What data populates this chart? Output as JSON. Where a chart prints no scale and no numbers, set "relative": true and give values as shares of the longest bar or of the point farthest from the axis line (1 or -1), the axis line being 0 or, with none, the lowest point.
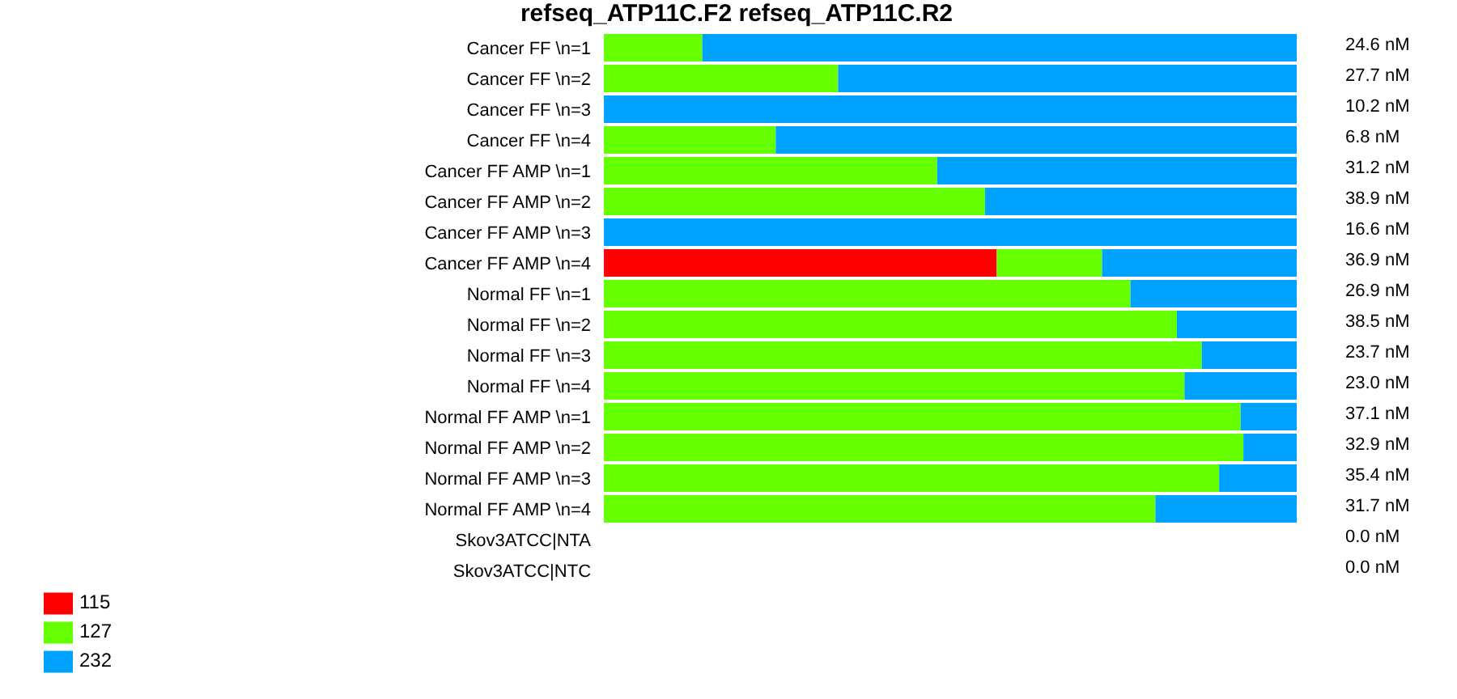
{
  "chart_data": {
    "type": "bar",
    "orientation": "horizontal",
    "stacked": true,
    "relative": true,
    "title": "refseq_ATP11C.F2  refseq_ATP11C.R2",
    "categories": [
      "Cancer FF \\n=1",
      "Cancer FF \\n=2",
      "Cancer FF \\n=3",
      "Cancer FF \\n=4",
      "Cancer FF AMP \\n=1",
      "Cancer FF AMP \\n=2",
      "Cancer FF AMP \\n=3",
      "Cancer FF AMP \\n=4",
      "Normal FF \\n=1",
      "Normal FF \\n=2",
      "Normal FF \\n=3",
      "Normal FF \\n=4",
      "Normal FF AMP \\n=1",
      "Normal FF AMP \\n=2",
      "Normal FF AMP \\n=3",
      "Normal FF AMP \\n=4",
      "Skov3ATCC|NTA",
      "Skov3ATCC|NTC"
    ],
    "series": [
      {
        "name": "115",
        "color": "#ff0000",
        "values": [
          0,
          0,
          0,
          0,
          0,
          0,
          0,
          0.567,
          0,
          0,
          0,
          0,
          0,
          0,
          0,
          0,
          0,
          0
        ]
      },
      {
        "name": "127",
        "color": "#66ff00",
        "values": [
          0.142,
          0.338,
          0,
          0.248,
          0.481,
          0.55,
          0,
          0.152,
          0.76,
          0.827,
          0.863,
          0.838,
          0.919,
          0.923,
          0.888,
          0.796,
          0,
          0
        ]
      },
      {
        "name": "232",
        "color": "#00a2ff",
        "values": [
          0.858,
          0.662,
          1,
          0.752,
          0.519,
          0.45,
          1,
          0.281,
          0.24,
          0.173,
          0.137,
          0.162,
          0.081,
          0.077,
          0.112,
          0.204,
          0,
          0
        ]
      }
    ],
    "annotations": [
      "24.6 nM",
      "27.7 nM",
      "10.2 nM",
      "6.8 nM",
      "31.2 nM",
      "38.9 nM",
      "16.6 nM",
      "36.9 nM",
      "26.9 nM",
      "38.5 nM",
      "23.7 nM",
      "23.0 nM",
      "37.1 nM",
      "32.9 nM",
      "35.4 nM",
      "31.7 nM",
      "0.0 nM",
      "0.0 nM"
    ],
    "legend": "bottom left",
    "tick_labels": "y"
  }
}
